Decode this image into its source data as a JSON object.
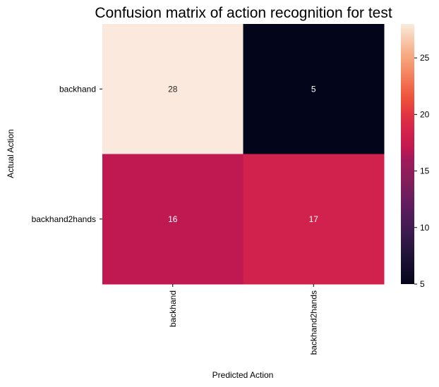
{
  "chart_data": {
    "type": "heatmap",
    "title": "Confusion matrix of action recognition for test",
    "xlabel": "Predicted Action",
    "ylabel": "Actual Action",
    "x_categories": [
      "backhand",
      "backhand2hands"
    ],
    "y_categories": [
      "backhand",
      "backhand2hands"
    ],
    "values": [
      [
        28,
        5
      ],
      [
        16,
        17
      ]
    ],
    "colorbar": {
      "range": [
        5,
        28
      ],
      "ticks": [
        5,
        10,
        15,
        20,
        25
      ],
      "colormap": "rocket"
    },
    "colors": {
      "28": "#fae9dc",
      "5": "#03051a",
      "16": "#c01850",
      "17": "#d1214d"
    }
  }
}
